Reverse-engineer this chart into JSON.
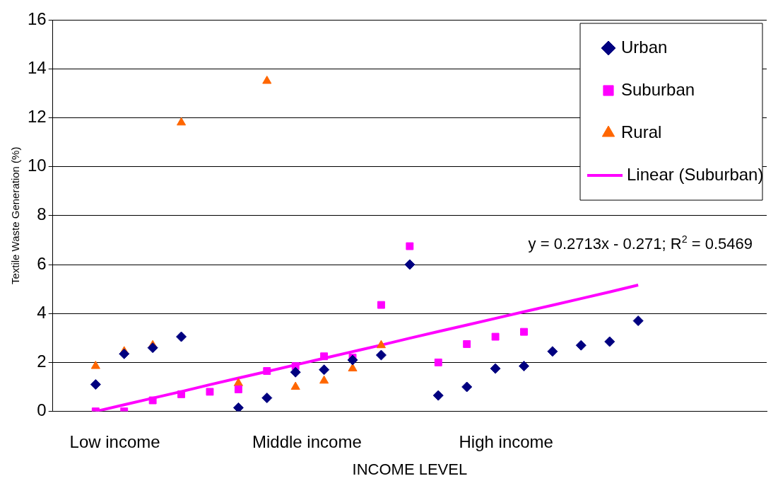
{
  "chart_data": {
    "type": "scatter",
    "xlabel": "INCOME LEVEL",
    "ylabel": "Textile Waste Generation (%)",
    "categories": [
      null,
      null,
      null,
      null,
      null,
      null,
      null,
      null,
      null,
      null,
      null,
      null,
      null,
      null,
      null,
      null,
      null,
      null,
      null,
      null,
      null,
      null,
      null,
      null,
      null
    ],
    "ylim": [
      0,
      16
    ],
    "yticks": [
      0,
      2,
      4,
      6,
      8,
      10,
      12,
      14,
      16
    ],
    "tick_labels": "y",
    "grid": "y",
    "legend": "top right",
    "series": [
      {
        "name": "Urban",
        "color": "#000080",
        "marker": "diamond",
        "values": [
          null,
          1.1,
          2.35,
          2.6,
          3.05,
          null,
          0.15,
          0.55,
          1.6,
          1.7,
          2.1,
          2.3,
          6.0,
          0.65,
          1.0,
          1.75,
          1.85,
          2.45,
          2.7,
          2.85,
          3.7,
          null,
          null,
          null,
          null
        ]
      },
      {
        "name": "Suburban",
        "color": "#ff00ff",
        "marker": "square",
        "values": [
          null,
          0,
          0,
          0.45,
          0.7,
          0.8,
          0.9,
          1.65,
          1.85,
          2.25,
          2.2,
          4.35,
          6.75,
          2.0,
          2.75,
          3.05,
          3.25,
          null,
          null,
          null,
          null,
          null,
          null,
          null,
          null
        ]
      },
      {
        "name": "Rural",
        "color": "#ff6600",
        "marker": "triangle",
        "values": [
          null,
          1.85,
          2.45,
          2.7,
          11.8,
          null,
          1.15,
          13.5,
          1.0,
          1.25,
          1.75,
          2.7,
          null,
          null,
          null,
          null,
          null,
          null,
          null,
          null,
          null,
          null,
          null,
          null,
          null
        ]
      },
      {
        "name": "Linear (Suburban)",
        "type": "line",
        "color": "#ff00ff",
        "marker": "none",
        "line_style": "solid",
        "values": [
          null,
          0,
          0.27,
          0.54,
          0.81,
          1.09,
          1.36,
          1.63,
          1.9,
          2.17,
          2.44,
          2.71,
          2.99,
          3.26,
          3.53,
          3.8,
          4.07,
          4.34,
          4.61,
          4.88,
          5.16,
          null,
          null,
          null,
          null
        ]
      }
    ],
    "annotations": [
      "Low income",
      "Middle income",
      "High income",
      "y = 0.2713x - 0.271; R$^{2}$ = 0.5469"
    ]
  }
}
